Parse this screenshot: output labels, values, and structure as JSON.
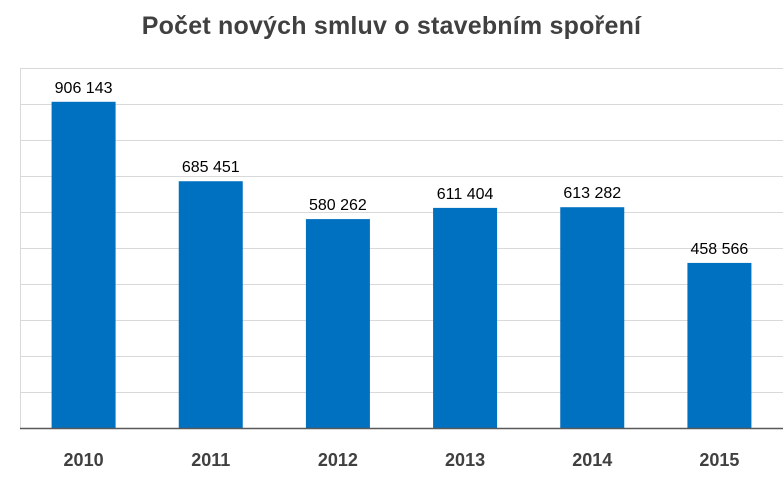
{
  "chart_data": {
    "type": "bar",
    "title": "Počet nových smluv o stavebním spoření",
    "xlabel": "",
    "ylabel": "",
    "categories": [
      "2010",
      "2011",
      "2012",
      "2013",
      "2014",
      "2015"
    ],
    "values": [
      906143,
      685451,
      580262,
      611404,
      613282,
      458566
    ],
    "data_labels": [
      "906 143",
      "685 451",
      "580 262",
      "611 404",
      "613 282",
      "458 566"
    ],
    "ylim": [
      0,
      1000000
    ],
    "grid": true,
    "legend": "none",
    "colors": {
      "bar": "#0070C0",
      "grid": "#D9D9D9",
      "axis": "#595959",
      "title": "#404040"
    }
  }
}
